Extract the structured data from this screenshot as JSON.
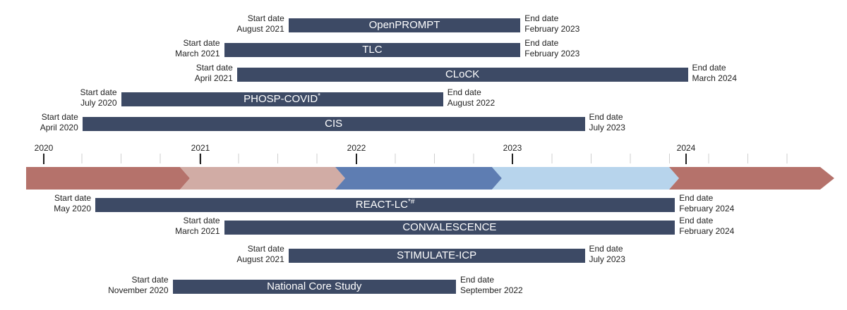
{
  "labels": {
    "start": "Start date",
    "end": "End date"
  },
  "timeline": {
    "years": [
      "2020",
      "2021",
      "2022",
      "2023",
      "2024"
    ],
    "segment_colors": [
      "#b5726b",
      "#d1aca5",
      "#5e7db2",
      "#b7d4ec",
      "#b5726b"
    ]
  },
  "studies_above": [
    {
      "name": "OpenPROMPT",
      "start": "August 2021",
      "end": "February 2023"
    },
    {
      "name": "TLC",
      "start": "March 2021",
      "end": "February 2023"
    },
    {
      "name": "CLoCK",
      "start": "April 2021",
      "end": "March 2024"
    },
    {
      "name": "PHOSP-COVID",
      "sup": "*",
      "start": "July 2020",
      "end": "August 2022"
    },
    {
      "name": "CIS",
      "start": "April 2020",
      "end": "July 2023"
    }
  ],
  "studies_below": [
    {
      "name": "REACT-LC",
      "sup": "*#",
      "start": "May 2020",
      "end": "February 2024"
    },
    {
      "name": "CONVALESCENCE",
      "start": "March 2021",
      "end": "February 2024"
    },
    {
      "name": "STIMULATE-ICP",
      "start": "August 2021",
      "end": "July 2023"
    },
    {
      "name": "National Core Study",
      "start": "November 2020",
      "end": "September 2022"
    }
  ],
  "colors": {
    "bar": "#3d4a65",
    "tick": "#222222",
    "minor_tick": "#cfcfcf"
  }
}
